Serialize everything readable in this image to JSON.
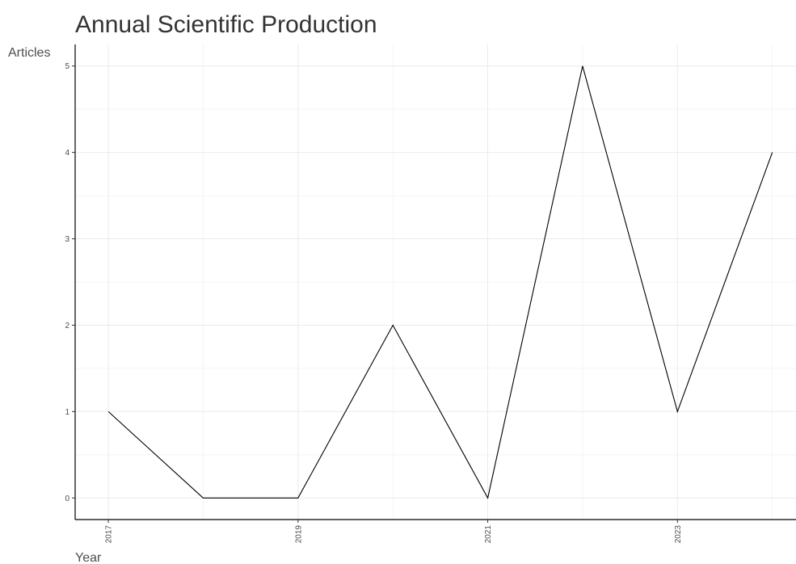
{
  "chart_data": {
    "type": "line",
    "title": "Annual Scientific Production",
    "xlabel": "Year",
    "ylabel": "Articles",
    "x": [
      2017,
      2018,
      2019,
      2020,
      2021,
      2022,
      2023,
      2024
    ],
    "values": [
      1,
      0,
      0,
      2,
      0,
      5,
      1,
      4
    ],
    "x_ticks": [
      2017,
      2019,
      2021,
      2023
    ],
    "x_tick_labels": [
      "2017",
      "2019",
      "2021",
      "2023"
    ],
    "y_ticks": [
      0,
      1,
      2,
      3,
      4,
      5
    ],
    "y_tick_labels": [
      "0",
      "1",
      "2",
      "3",
      "4",
      "5"
    ],
    "xlim": [
      2016.65,
      2024.25
    ],
    "ylim": [
      -0.25,
      5.25
    ],
    "grid": true,
    "legend": "none",
    "line_color": "#000000"
  }
}
